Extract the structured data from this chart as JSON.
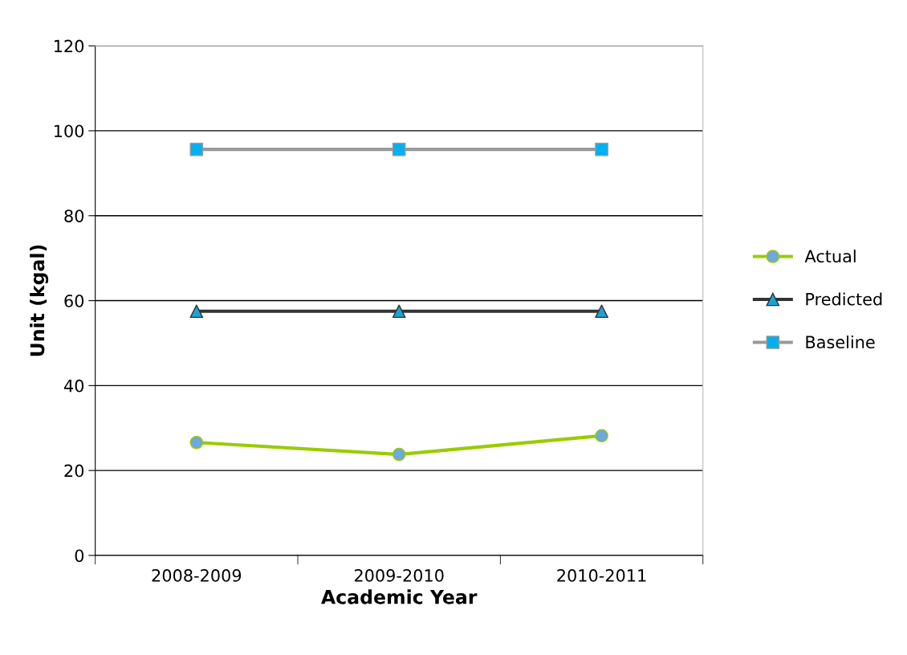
{
  "chart_data": {
    "type": "line",
    "xlabel": "Academic Year",
    "ylabel": "Unit (kgal)",
    "categories": [
      "2008-2009",
      "2009-2010",
      "2010-2011"
    ],
    "series": [
      {
        "name": "Actual",
        "color": "#99cc00",
        "marker": "circle",
        "colors": [
          "#6fa8dc",
          "#6fa8dc",
          "#6fa8dc"
        ],
        "values": [
          26.6,
          23.8,
          28.2
        ]
      },
      {
        "name": "Predicted",
        "color": "#333333",
        "marker": "triangle",
        "colors": [
          "#1ca3d6",
          "#1ca3d6",
          "#1ca3d6"
        ],
        "values": [
          57.5,
          57.5,
          57.5
        ]
      },
      {
        "name": "Baseline",
        "color": "#999999",
        "marker": "square",
        "colors": [
          "#00b0f0",
          "#00b0f0",
          "#00b0f0"
        ],
        "values": [
          95.6,
          95.6,
          95.6
        ]
      }
    ],
    "ylim": [
      0,
      120
    ],
    "yticks": [
      0,
      20,
      40,
      60,
      80,
      100,
      120
    ],
    "grid": "y",
    "legend": "right"
  }
}
